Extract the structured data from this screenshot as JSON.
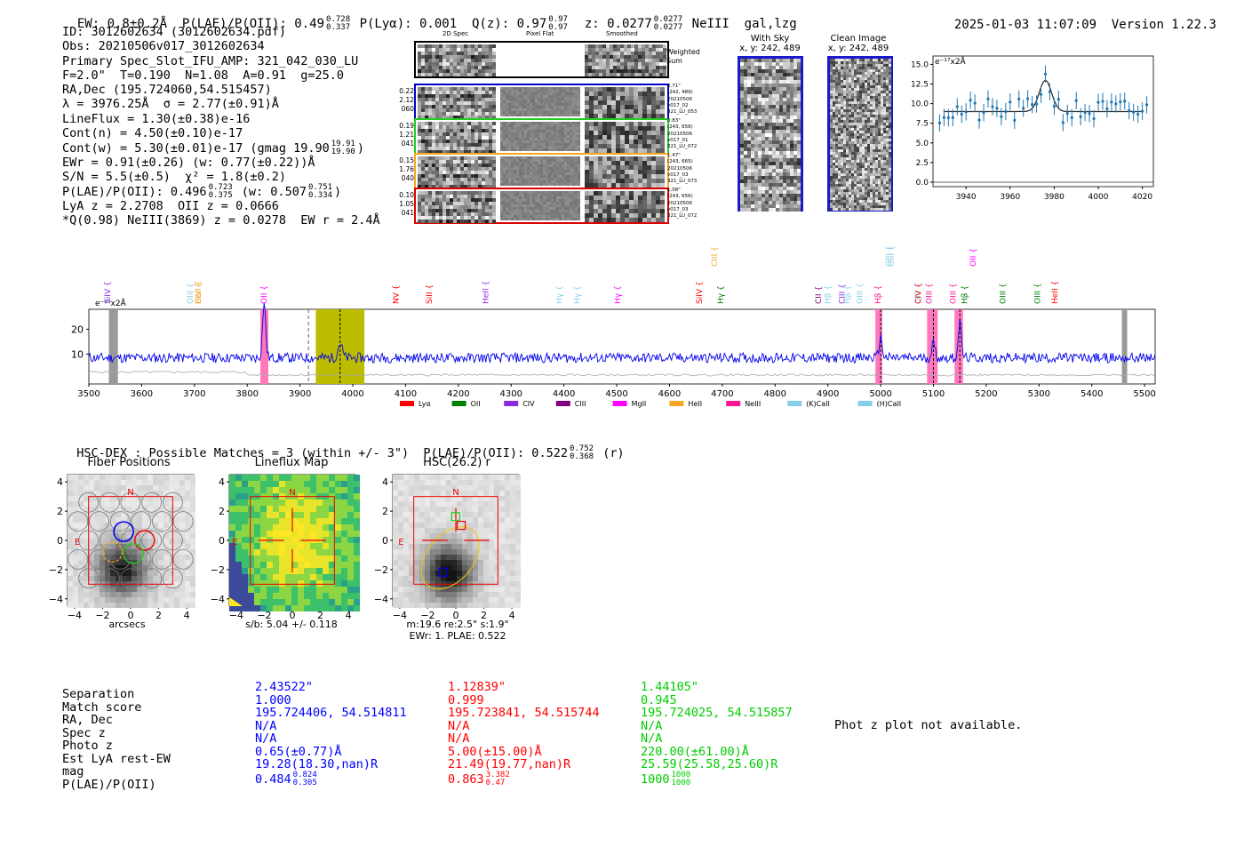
{
  "header": {
    "ew": "EW: 0.8±0.2Å",
    "plae_label": "P(LAE)/P(OII): 0.49",
    "plae_hi": "0.728",
    "plae_lo": "0.337",
    "plya": "P(Lyα): 0.001",
    "qz_label": "Q(z): 0.97",
    "qz_hi": "0.97",
    "qz_lo": "0.97",
    "z_label": "z: 0.0277",
    "z_hi": "0.0277",
    "z_lo": "0.0277",
    "z_tail": "NeIII  gal,lzg",
    "datetime": "2025-01-03 11:07:09",
    "version": "Version 1.22.3"
  },
  "info": {
    "id": "ID: 3012602634 (3012602634.pdf)",
    "obs": "Obs: 20210506v017_3012602634",
    "primary": "Primary Spec_Slot_IFU_AMP: 321_042_030_LU",
    "fline": "F=2.0\"  T=0.190  N=1.08  A=0.91  g=25.0",
    "radec": "RA,Dec (195.724060,54.515457)",
    "lambda": "λ = 3976.25Å  σ = 2.77(±0.91)Å",
    "lineflux": "LineFlux = 1.30(±0.38)e-16",
    "contn": "Cont(n) = 4.50(±0.10)e-17",
    "contw": "Cont(w) = 5.30(±0.01)e-17 (gmag 19.90",
    "contw_hi": "19.91",
    "contw_lo": "19.90",
    "ewr": "EWr = 0.91(±0.26) (w: 0.77(±0.22))Å",
    "sn": "S/N = 5.5(±0.5)  χ² = 1.8(±0.2)",
    "plae": "P(LAE)/P(OII): 0.496",
    "plae_hi": "0.723",
    "plae_lo": "0.375",
    "plae_w": "(w: 0.507",
    "plae_w_hi": "0.751",
    "plae_w_lo": "0.334",
    "lya": "LyA z = 2.2708  OII z = 0.0666",
    "q": "*Q(0.98) NeIII(3869) z = 0.0278  EW r = 2.4Å"
  },
  "cutouts": {
    "col_2d": "2D Spec",
    "col_flat": "Pixel Flat",
    "col_smooth": "Smoothed",
    "weighted_sum": "Weighted Sum",
    "rows": [
      {
        "left": [
          "0.22",
          "2.12",
          "060"
        ],
        "right": [
          "0.71\"",
          "(242, 489)",
          "20210506",
          "v017_02",
          "321_LU_053"
        ],
        "color": "#0000cc"
      },
      {
        "left": [
          "0.19",
          "1.21",
          "041"
        ],
        "right": [
          "0.83\"",
          "(243, 656)",
          "20210506",
          "v017_01",
          "321_LU_072"
        ],
        "color": "#22cc22"
      },
      {
        "left": [
          "0.15",
          "1.76",
          "040"
        ],
        "right": [
          "1.47\"",
          "(243, 665)",
          "20210506",
          "v017_03",
          "321_LU_073"
        ],
        "color": "#f5a623"
      },
      {
        "left": [
          "0.10",
          "1.05",
          "041"
        ],
        "right": [
          "1.08\"",
          "(243, 656)",
          "20210506",
          "v017_03",
          "321_LU_072"
        ],
        "color": "#dd0000"
      }
    ]
  },
  "sky": {
    "with_sky": "With Sky",
    "with_sky_xy": "x, y: 242, 489",
    "clean": "Clean Image",
    "clean_xy": "x, y: 242, 489"
  },
  "zoom_plot": {
    "unit": "e⁻¹⁷x2Å",
    "yticks": [
      "15.0",
      "12.5",
      "10.0",
      "7.5",
      "5.0",
      "2.5",
      "0.0"
    ],
    "xticks": [
      "3940",
      "3960",
      "3980",
      "4000",
      "4020"
    ],
    "colors": {
      "points": "#1f77b4",
      "fit": "#333333"
    }
  },
  "spectrum": {
    "unit": "e⁻¹⁷x2Å",
    "yticks": [
      "20",
      "10"
    ],
    "xticks": [
      "3500",
      "3600",
      "3700",
      "3800",
      "3900",
      "4000",
      "4100",
      "4200",
      "4300",
      "4400",
      "4500",
      "4600",
      "4700",
      "4800",
      "4900",
      "5000",
      "5100",
      "5200",
      "5300",
      "5400",
      "5500"
    ],
    "line_labels": [
      {
        "t": "SiIV",
        "c": "#8a2be2"
      },
      {
        "t": "OIII",
        "c": "#87ceeb"
      },
      {
        "t": "CIV",
        "c": "#f5a623"
      },
      {
        "t": "HeII",
        "c": "#f5a623"
      },
      {
        "t": "OII",
        "c": "#ff00ff"
      },
      {
        "t": "NV",
        "c": "#ff0000"
      },
      {
        "t": "SiII",
        "c": "#ff0000"
      },
      {
        "t": "HeII",
        "c": "#8a2be2"
      },
      {
        "t": "Hγ",
        "c": "#87ceeb"
      },
      {
        "t": "Hγ",
        "c": "#87ceeb"
      },
      {
        "t": "Hγ",
        "c": "#ff00ff"
      },
      {
        "t": "SiIV",
        "c": "#ff0000"
      },
      {
        "t": "CIII",
        "c": "#f5a623"
      },
      {
        "t": "Hγ",
        "c": "#008000"
      },
      {
        "t": "CII",
        "c": "#800080"
      },
      {
        "t": "Hβ",
        "c": "#87ceeb"
      },
      {
        "t": "CIII",
        "c": "#8a2be2"
      },
      {
        "t": "Hβ",
        "c": "#87ceeb"
      },
      {
        "t": "OIII",
        "c": "#87ceeb"
      },
      {
        "t": "Hβ",
        "c": "#ff1493"
      },
      {
        "t": "OIII",
        "c": "#87ceeb"
      },
      {
        "t": "OIII",
        "c": "#87ceeb"
      },
      {
        "t": "OIII",
        "c": "#87ceeb"
      },
      {
        "t": "CIV",
        "c": "#ff0000"
      },
      {
        "t": "OIII",
        "c": "#ff1493"
      },
      {
        "t": "OIII",
        "c": "#ff1493"
      },
      {
        "t": "Hβ",
        "c": "#008000"
      },
      {
        "t": "OII",
        "c": "#ff00ff"
      },
      {
        "t": "OIII",
        "c": "#008000"
      },
      {
        "t": "OIII",
        "c": "#008000"
      },
      {
        "t": "HeII",
        "c": "#ff0000"
      }
    ],
    "legend": [
      {
        "label": "Lyα",
        "color": "#ff0000"
      },
      {
        "label": "OII",
        "color": "#008000"
      },
      {
        "label": "CIV",
        "color": "#8a2be2"
      },
      {
        "label": "CIII",
        "color": "#800080"
      },
      {
        "label": "MgII",
        "color": "#ff00ff"
      },
      {
        "label": "HeII",
        "color": "#f5a623"
      },
      {
        "label": "NeIII",
        "color": "#ff1493"
      },
      {
        "label": "(K)CaII",
        "color": "#87ceeb"
      },
      {
        "label": "(H)CaII",
        "color": "#87ceeb"
      }
    ]
  },
  "hsc": {
    "summary": "HSC-DEX : Possible Matches = 3 (within +/- 3\")  P(LAE)/P(OII): 0.522",
    "summary_hi": "0.752",
    "summary_lo": "0.368",
    "summary_tail": "(r)",
    "fiber_title": "Fiber Positions",
    "fiber_xlabel": "arcsecs",
    "lineflux_title": "Lineflux Map",
    "lineflux_xlabel": "s/b: 5.04 +/- 0.118",
    "hsc_title": "HSC(26.2) r",
    "hsc_xlabel1": "m:19.6  re:2.5\"  s:1.9\"",
    "hsc_xlabel2": "EWr: 1. PLAE: 0.522",
    "north": "N",
    "east": "E",
    "ticks": [
      "4",
      "2",
      "0",
      "−2",
      "−4"
    ],
    "xticks": [
      "−4",
      "−2",
      "0",
      "2",
      "4"
    ]
  },
  "matches": {
    "labels": [
      "Separation",
      "Match score",
      "RA, Dec",
      "Spec z",
      "Photo z",
      "Est LyA rest-EW",
      "mag",
      "P(LAE)/P(OII)"
    ],
    "cols": [
      {
        "color": "#0000ff",
        "sep": "2.43522\"",
        "score": "1.000",
        "radec": "195.724406, 54.514811",
        "specz": "N/A",
        "photoz": "N/A",
        "ew": "0.65(±0.77)Å",
        "mag": "19.28(18.30,nan)R",
        "plae": "0.484",
        "hi": "0.824",
        "lo": "0.305"
      },
      {
        "color": "#ff0000",
        "sep": "1.12839\"",
        "score": "0.999",
        "radec": "195.723841, 54.515744",
        "specz": "N/A",
        "photoz": "N/A",
        "ew": "5.00(±15.00)Å",
        "mag": "21.49(19.77,nan)R",
        "plae": "0.863",
        "hi": "3.382",
        "lo": "0.47"
      },
      {
        "color": "#00cc00",
        "sep": "1.44105\"",
        "score": "0.945",
        "radec": "195.724025, 54.515857",
        "specz": "N/A",
        "photoz": "N/A",
        "ew": "220.00(±61.00)Å",
        "mag": "25.59(25.58,25.60)R",
        "plae": "1000",
        "hi": "1000",
        "lo": "1000"
      }
    ],
    "photz_note": "Phot z plot not available."
  }
}
